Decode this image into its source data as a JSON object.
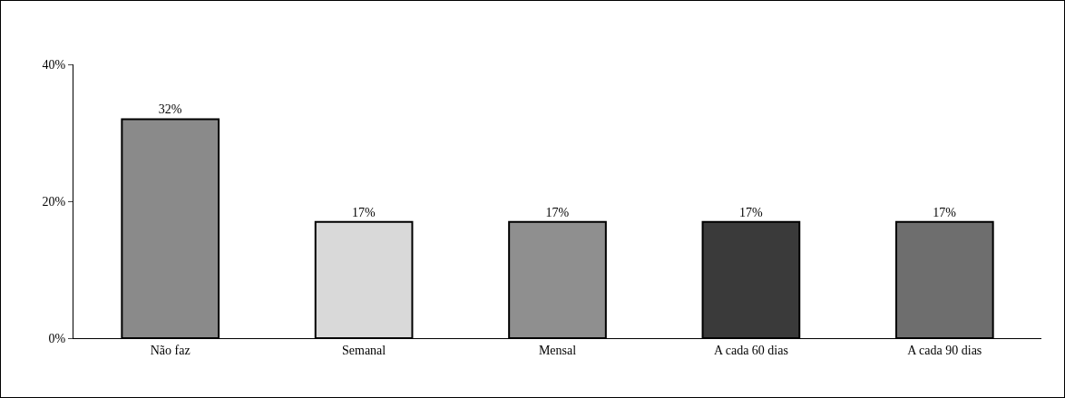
{
  "chart_data": {
    "type": "bar",
    "categories": [
      "Não faz",
      "Semanal",
      "Mensal",
      "A cada 60 dias",
      "A cada 90 dias"
    ],
    "values": [
      32,
      17,
      17,
      17,
      17
    ],
    "value_labels": [
      "32%",
      "17%",
      "17%",
      "17%",
      "17%"
    ],
    "colors": [
      "#8a8a8a",
      "#d9d9d9",
      "#8f8f8f",
      "#3a3a3a",
      "#6e6e6e"
    ],
    "ylim": [
      0,
      40
    ],
    "yticks": [
      {
        "value": 0,
        "label": "0%"
      },
      {
        "value": 20,
        "label": "20%"
      },
      {
        "value": 40,
        "label": "40%"
      }
    ],
    "grid": false
  }
}
